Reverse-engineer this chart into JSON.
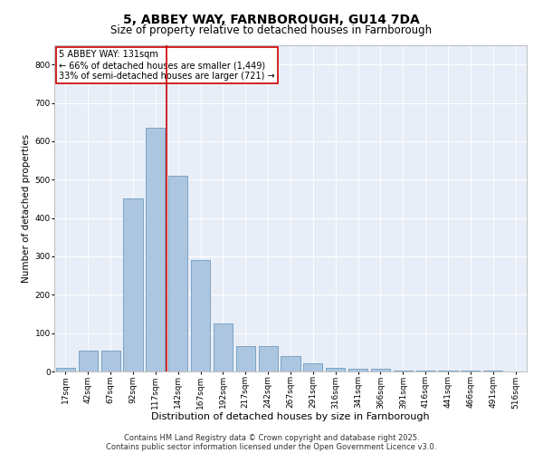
{
  "title1": "5, ABBEY WAY, FARNBOROUGH, GU14 7DA",
  "title2": "Size of property relative to detached houses in Farnborough",
  "xlabel": "Distribution of detached houses by size in Farnborough",
  "ylabel": "Number of detached properties",
  "categories": [
    "17sqm",
    "42sqm",
    "67sqm",
    "92sqm",
    "117sqm",
    "142sqm",
    "167sqm",
    "192sqm",
    "217sqm",
    "242sqm",
    "267sqm",
    "291sqm",
    "316sqm",
    "341sqm",
    "366sqm",
    "391sqm",
    "416sqm",
    "441sqm",
    "466sqm",
    "491sqm",
    "516sqm"
  ],
  "values": [
    10,
    55,
    55,
    450,
    635,
    510,
    290,
    125,
    65,
    65,
    40,
    22,
    10,
    7,
    7,
    3,
    3,
    3,
    3,
    3,
    1
  ],
  "bar_color": "#adc6e0",
  "bar_edge_color": "#5b8db8",
  "bg_color": "#e8eef7",
  "grid_color": "#ffffff",
  "vline_color": "#cc0000",
  "vline_x": 4.5,
  "annotation_text": "5 ABBEY WAY: 131sqm\n← 66% of detached houses are smaller (1,449)\n33% of semi-detached houses are larger (721) →",
  "annotation_box_color": "#cc0000",
  "footer1": "Contains HM Land Registry data © Crown copyright and database right 2025.",
  "footer2": "Contains public sector information licensed under the Open Government Licence v3.0.",
  "ylim": [
    0,
    850
  ],
  "yticks": [
    0,
    100,
    200,
    300,
    400,
    500,
    600,
    700,
    800
  ],
  "title1_fontsize": 10,
  "title2_fontsize": 8.5,
  "xlabel_fontsize": 8,
  "ylabel_fontsize": 7.5,
  "tick_fontsize": 6.5,
  "annotation_fontsize": 7,
  "footer_fontsize": 6
}
